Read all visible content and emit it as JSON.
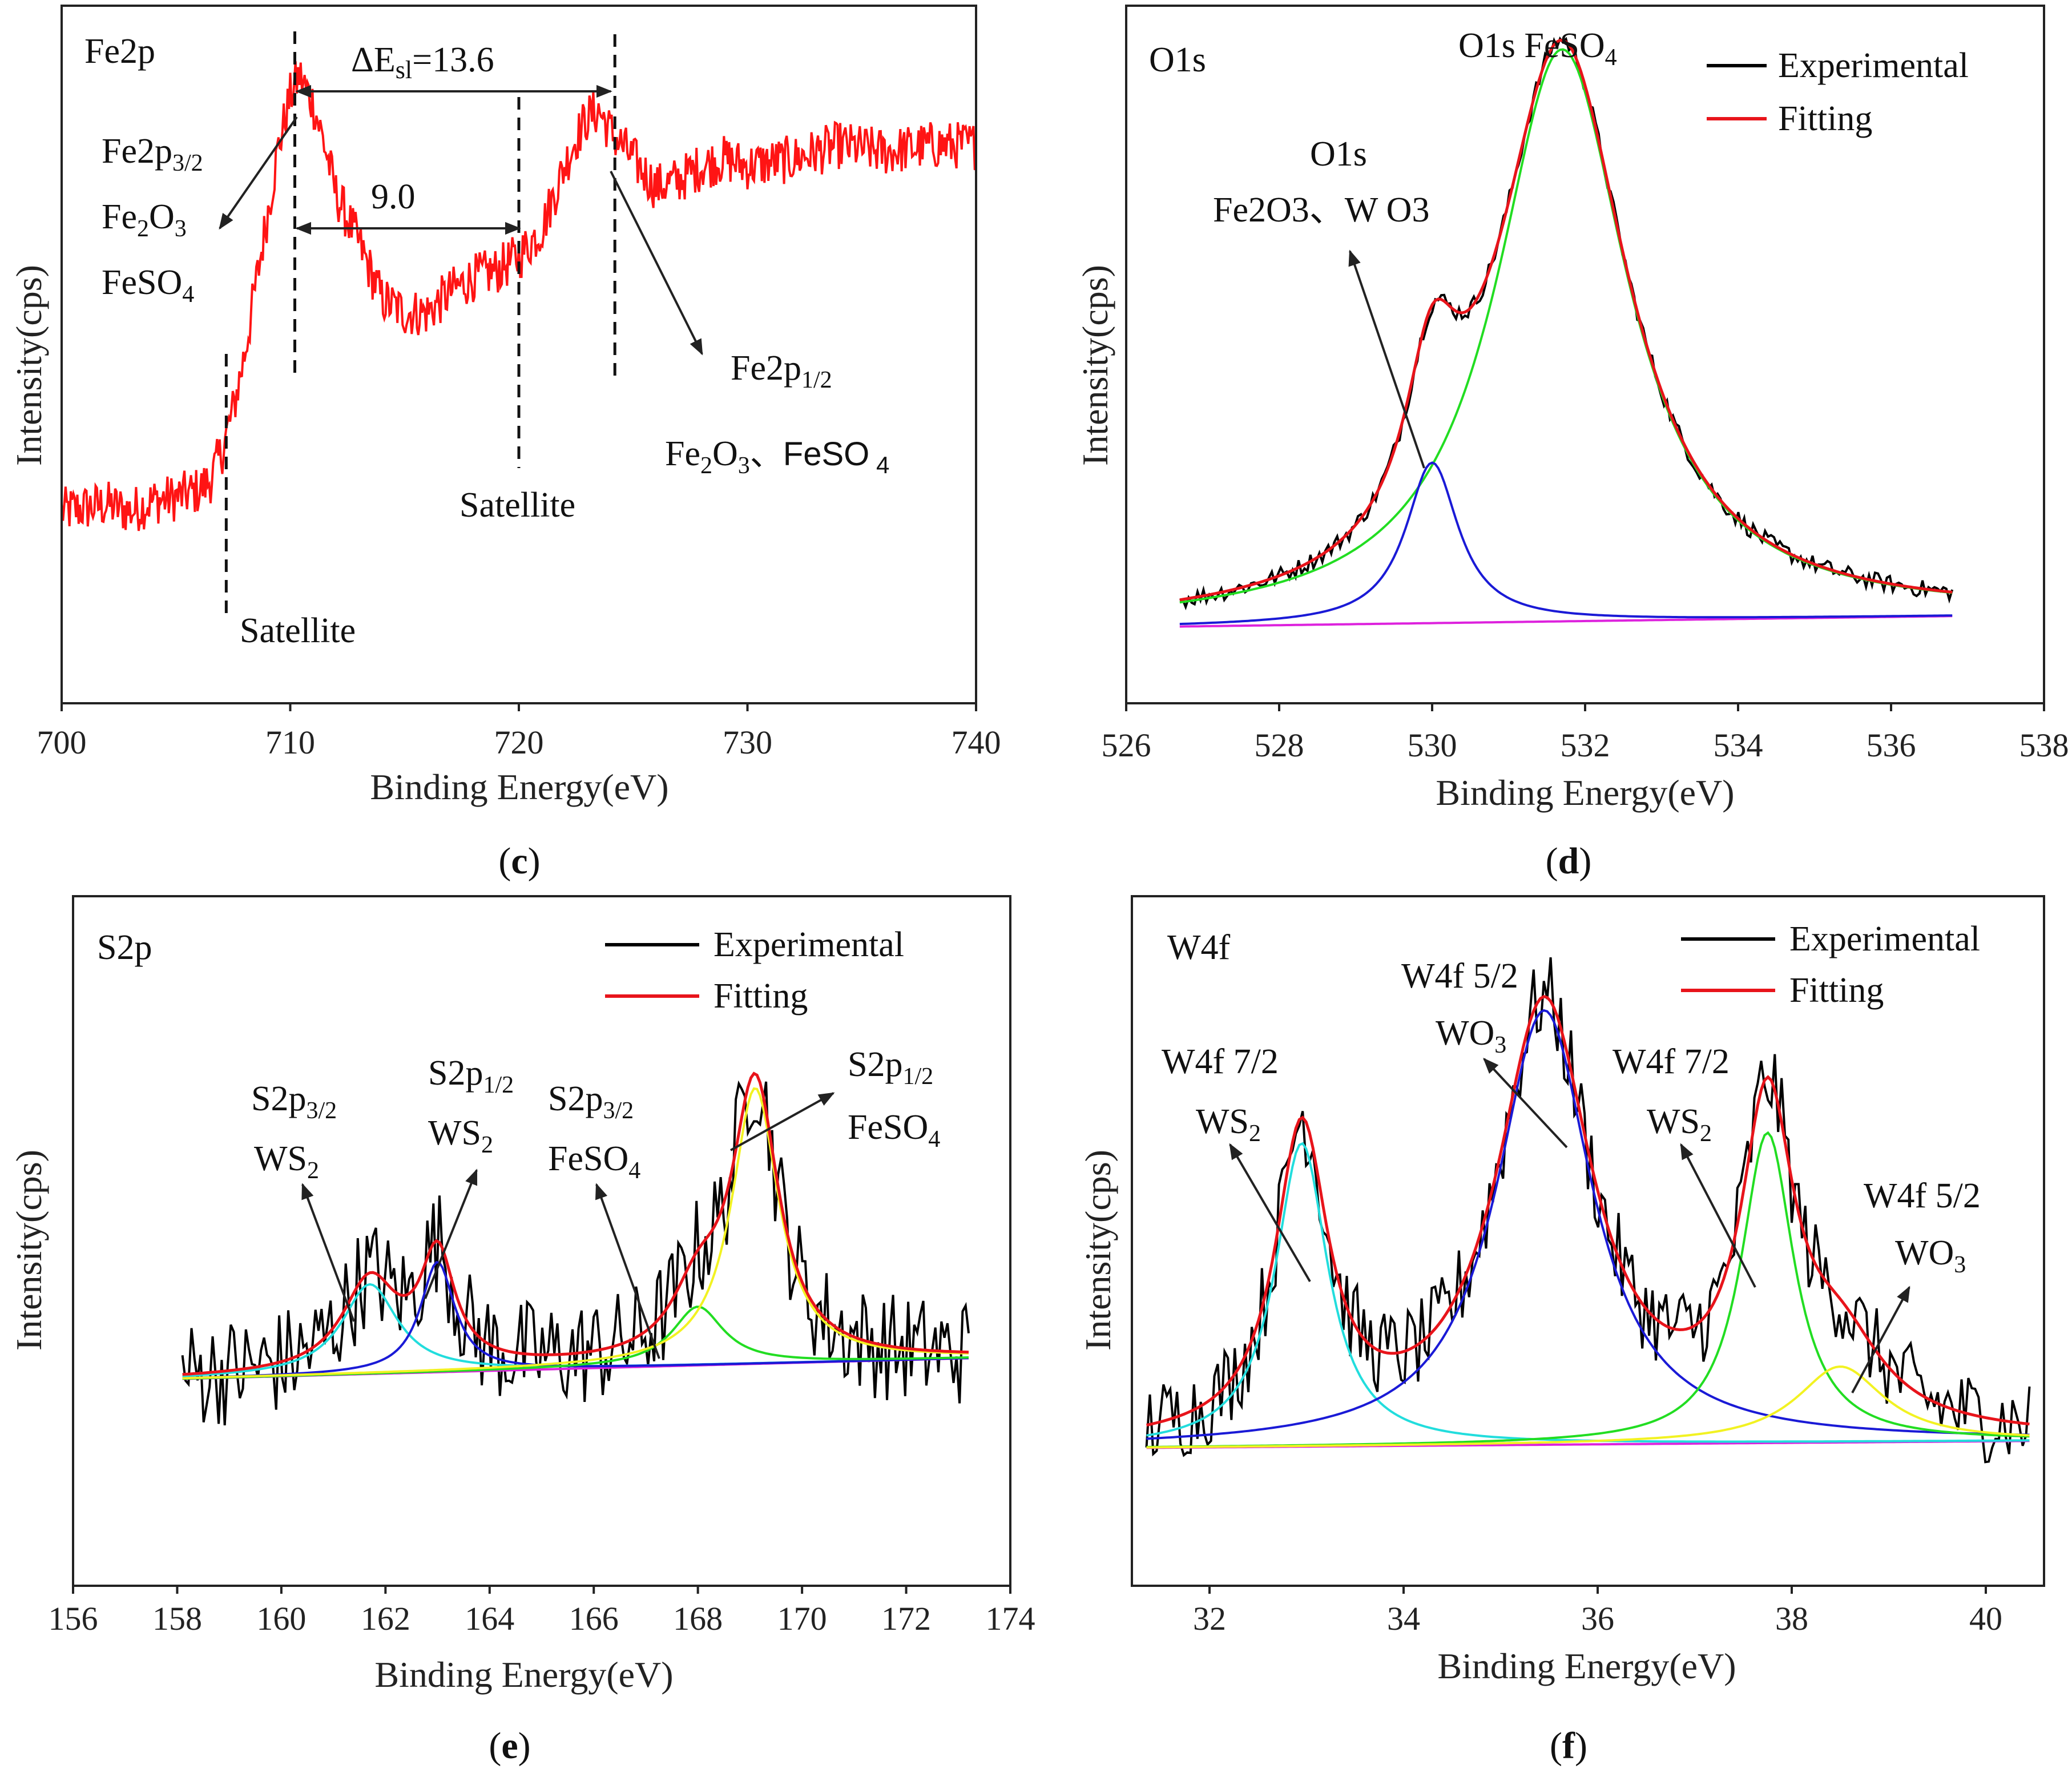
{
  "colors": {
    "experimental": "#000000",
    "fitting": "#e8141b",
    "fe_signal": "#ff1414",
    "blue": "#1a1ad6",
    "green": "#22dd22",
    "magenta": "#dd22dd",
    "cyan": "#22dddd",
    "yellow": "#f2f222"
  },
  "legend": {
    "experimental": "Experimental",
    "fitting": "Fitting"
  },
  "chart_data": [
    {
      "id": "c",
      "type": "line",
      "panel_label": "c",
      "element_label": "Fe2p",
      "xlabel": "Binding Energy(eV)",
      "ylabel": "Intensity(cps)",
      "xlim": [
        700,
        740
      ],
      "x_ticks": [
        "700",
        "710",
        "720",
        "730",
        "740"
      ],
      "annotations": {
        "delta_e": "ΔE",
        "delta_e_sub": "sl",
        "delta_e_value": "=13.6",
        "gap": "9.0",
        "peak1_a": "Fe2p",
        "peak1_a_sub": "3/2",
        "peak1_b": "Fe",
        "peak1_b_sub1": "2",
        "peak1_b_mid": "O",
        "peak1_b_sub2": "3",
        "peak1_c": "FeSO",
        "peak1_c_sub": "4",
        "peak2_a": "Fe2p",
        "peak2_a_sub": "1/2",
        "peak2_b_1": "Fe",
        "peak2_b_sub1": "2",
        "peak2_b_2": "O",
        "peak2_b_sub2": "3",
        "peak2_b_3": "、FeSO",
        "peak2_b_sub3": " 4",
        "satellite_1": "Satellite",
        "satellite_2": "Satellite"
      },
      "markers_ev": [
        707.2,
        710.2,
        720.0,
        724.2
      ],
      "series": [
        {
          "name": "Fe2p signal",
          "x": [
            700,
            701,
            702,
            703,
            704,
            705,
            706,
            706.5,
            707,
            707.5,
            708,
            708.5,
            709,
            709.5,
            710,
            710.4,
            711,
            711.5,
            712,
            713,
            714,
            715,
            716,
            717,
            718,
            719,
            720,
            721,
            722,
            722.5,
            723,
            723.5,
            724,
            725,
            726,
            727,
            728,
            729,
            730,
            732,
            734,
            736,
            738,
            740
          ],
          "y": [
            0.275,
            0.28,
            0.285,
            0.275,
            0.29,
            0.295,
            0.305,
            0.32,
            0.36,
            0.42,
            0.5,
            0.6,
            0.7,
            0.8,
            0.87,
            0.9,
            0.86,
            0.8,
            0.73,
            0.66,
            0.58,
            0.56,
            0.56,
            0.59,
            0.61,
            0.62,
            0.64,
            0.68,
            0.77,
            0.81,
            0.84,
            0.85,
            0.82,
            0.78,
            0.74,
            0.75,
            0.77,
            0.78,
            0.77,
            0.78,
            0.8,
            0.79,
            0.8,
            0.8
          ]
        }
      ]
    },
    {
      "id": "d",
      "type": "line",
      "panel_label": "d",
      "element_label": "O1s",
      "xlabel": "Binding Energy(eV)",
      "ylabel": "Intensity(cps)",
      "xlim": [
        526,
        538
      ],
      "x_ticks": [
        "526",
        "528",
        "530",
        "532",
        "534",
        "536",
        "538"
      ],
      "annotations": {
        "top_peak": "O1s FeSO",
        "top_peak_sub": "4",
        "left_peak_a": "O1s",
        "left_peak_b": "Fe2O3、W O3"
      },
      "components": [
        {
          "name": "O1s FeSO4",
          "color_key": "green",
          "center": 531.7,
          "height": 0.82,
          "width": 1.05
        },
        {
          "name": "O1s Fe2O3、WO3",
          "color_key": "blue",
          "center": 530.0,
          "height": 0.23,
          "width": 0.42
        }
      ],
      "baseline": [
        0.11,
        0.125
      ],
      "x_range": [
        526.7,
        536.8
      ]
    },
    {
      "id": "e",
      "type": "line",
      "panel_label": "e",
      "element_label": "S2p",
      "xlabel": "Binding Energy(eV)",
      "ylabel": "Intensity(cps)",
      "xlim": [
        156,
        174
      ],
      "x_ticks": [
        "156",
        "158",
        "160",
        "162",
        "164",
        "166",
        "168",
        "170",
        "172",
        "174"
      ],
      "annotations": {
        "p1_a": "S2p",
        "p1_a_sub": "3/2",
        "p1_b": "WS",
        "p1_b_sub": "2",
        "p2_a": "S2p",
        "p2_a_sub": "1/2",
        "p2_b": "WS",
        "p2_b_sub": "2",
        "p3_a": "S2p",
        "p3_a_sub": "3/2",
        "p3_b": "FeSO",
        "p3_b_sub": "4",
        "p4_a": "S2p",
        "p4_a_sub": "1/2",
        "p4_b": "FeSO",
        "p4_b_sub": "4"
      },
      "components": [
        {
          "name": "S2p3/2 WS2",
          "color_key": "cyan",
          "center": 161.7,
          "height": 0.13,
          "width": 0.65
        },
        {
          "name": "S2p1/2 WS2",
          "color_key": "blue",
          "center": 163.0,
          "height": 0.16,
          "width": 0.4
        },
        {
          "name": "S2p3/2 FeSO4",
          "color_key": "green",
          "center": 168.0,
          "height": 0.085,
          "width": 0.6
        },
        {
          "name": "S2p1/2 FeSO4",
          "color_key": "yellow",
          "center": 169.1,
          "height": 0.4,
          "width": 0.55
        }
      ],
      "baseline": [
        0.3,
        0.33
      ],
      "x_range": [
        158.1,
        173.2
      ]
    },
    {
      "id": "f",
      "type": "line",
      "panel_label": "f",
      "element_label": "W4f",
      "xlabel": "Binding Energy(eV)",
      "ylabel": "Intensity(cps)",
      "xlim": [
        31.2,
        40.6
      ],
      "x_ticks": [
        "32",
        "34",
        "36",
        "38",
        "40"
      ],
      "x_tick_values": [
        32,
        34,
        36,
        38,
        40
      ],
      "annotations": {
        "p1_a": "W4f 7/2",
        "p1_b": "WS",
        "p1_b_sub": "2",
        "p2_a": "W4f 5/2",
        "p2_b": "WO",
        "p2_b_sub": "3",
        "p3_a": "W4f 7/2",
        "p3_b": "WS",
        "p3_b_sub": "2",
        "p4_a": "W4f 5/2",
        "p4_b": "WO",
        "p4_b_sub": "3"
      },
      "components": [
        {
          "name": "W4f 7/2 WS2",
          "color_key": "cyan",
          "center": 32.95,
          "height": 0.44,
          "width": 0.33
        },
        {
          "name": "W4f 5/2 WO3",
          "color_key": "blue",
          "center": 35.45,
          "height": 0.63,
          "width": 0.6
        },
        {
          "name": "W4f 7/2 WS2",
          "color_key": "green",
          "center": 37.75,
          "height": 0.45,
          "width": 0.33
        },
        {
          "name": "W4f 5/2 WO3",
          "color_key": "yellow",
          "center": 38.5,
          "height": 0.11,
          "width": 0.55
        }
      ],
      "baseline": [
        0.2,
        0.21
      ],
      "x_range": [
        31.35,
        40.45
      ]
    }
  ]
}
